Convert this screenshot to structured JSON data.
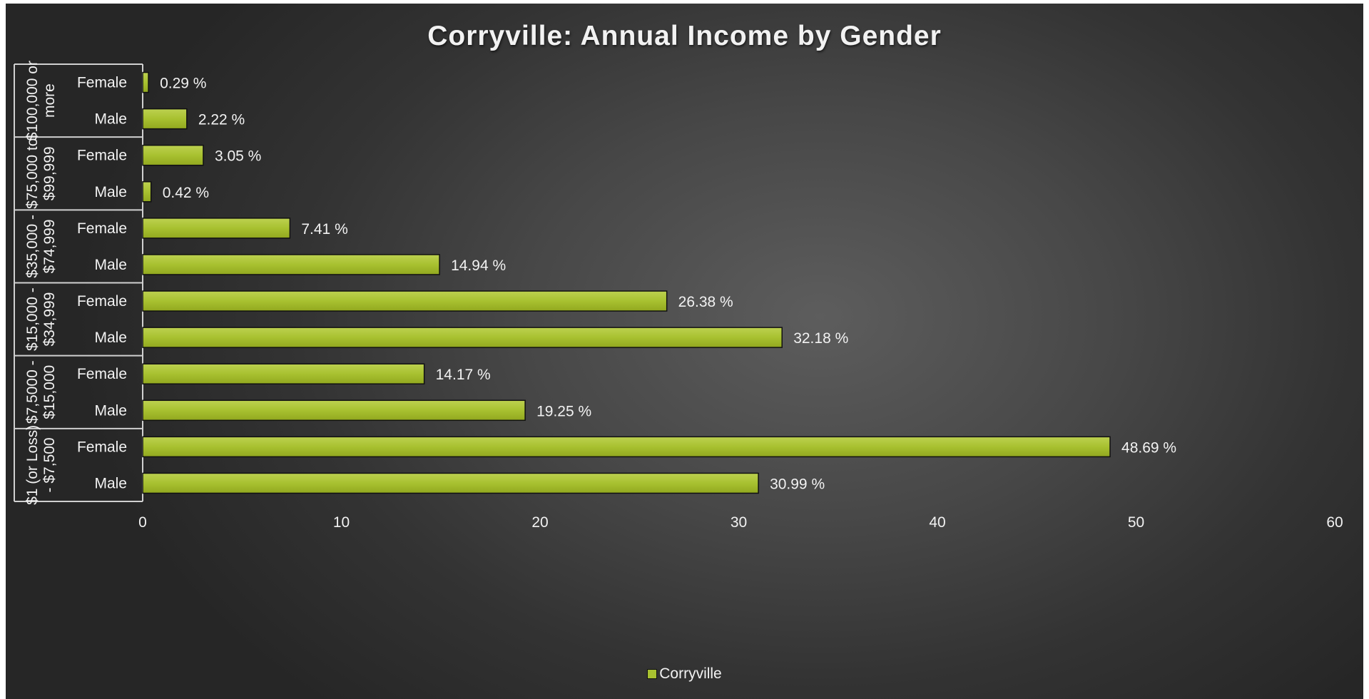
{
  "chart_data": {
    "type": "bar",
    "orientation": "horizontal",
    "title": "Corryville: Annual Income by Gender",
    "xlim": [
      0,
      60
    ],
    "x_ticks": [
      0,
      10,
      20,
      30,
      40,
      50,
      60
    ],
    "grid": false,
    "legend": {
      "placement": "bottom",
      "entries": [
        "Corryville"
      ]
    },
    "bar_color": "#a8c130",
    "value_suffix": " %",
    "groups": [
      {
        "label": "$100,000 or more",
        "label_lines": [
          "$100,000 or",
          "more"
        ],
        "bars": [
          {
            "category": "Female",
            "value": 0.29
          },
          {
            "category": "Male",
            "value": 2.22
          }
        ]
      },
      {
        "label": "$75,000 to $99,999",
        "label_lines": [
          "$75,000 to",
          "$99,999"
        ],
        "bars": [
          {
            "category": "Female",
            "value": 3.05
          },
          {
            "category": "Male",
            "value": 0.42
          }
        ]
      },
      {
        "label": "$35,000 - $74,999",
        "label_lines": [
          "$35,000 -",
          "$74,999"
        ],
        "bars": [
          {
            "category": "Female",
            "value": 7.41
          },
          {
            "category": "Male",
            "value": 14.94
          }
        ]
      },
      {
        "label": "$15,000 - $34,999",
        "label_lines": [
          "$15,000 -",
          "$34,999"
        ],
        "bars": [
          {
            "category": "Female",
            "value": 26.38
          },
          {
            "category": "Male",
            "value": 32.18
          }
        ]
      },
      {
        "label": "$7,5000 - $15,000",
        "label_lines": [
          "$7,5000 -",
          "$15,000"
        ],
        "bars": [
          {
            "category": "Female",
            "value": 14.17
          },
          {
            "category": "Male",
            "value": 19.25
          }
        ]
      },
      {
        "label": "$1 (or Loss) - $7,500",
        "label_lines": [
          "$1 (or Loss)",
          "- $7,500"
        ],
        "bars": [
          {
            "category": "Female",
            "value": 48.69
          },
          {
            "category": "Male",
            "value": 30.99
          }
        ]
      }
    ],
    "series": [
      {
        "name": "Corryville"
      }
    ]
  }
}
